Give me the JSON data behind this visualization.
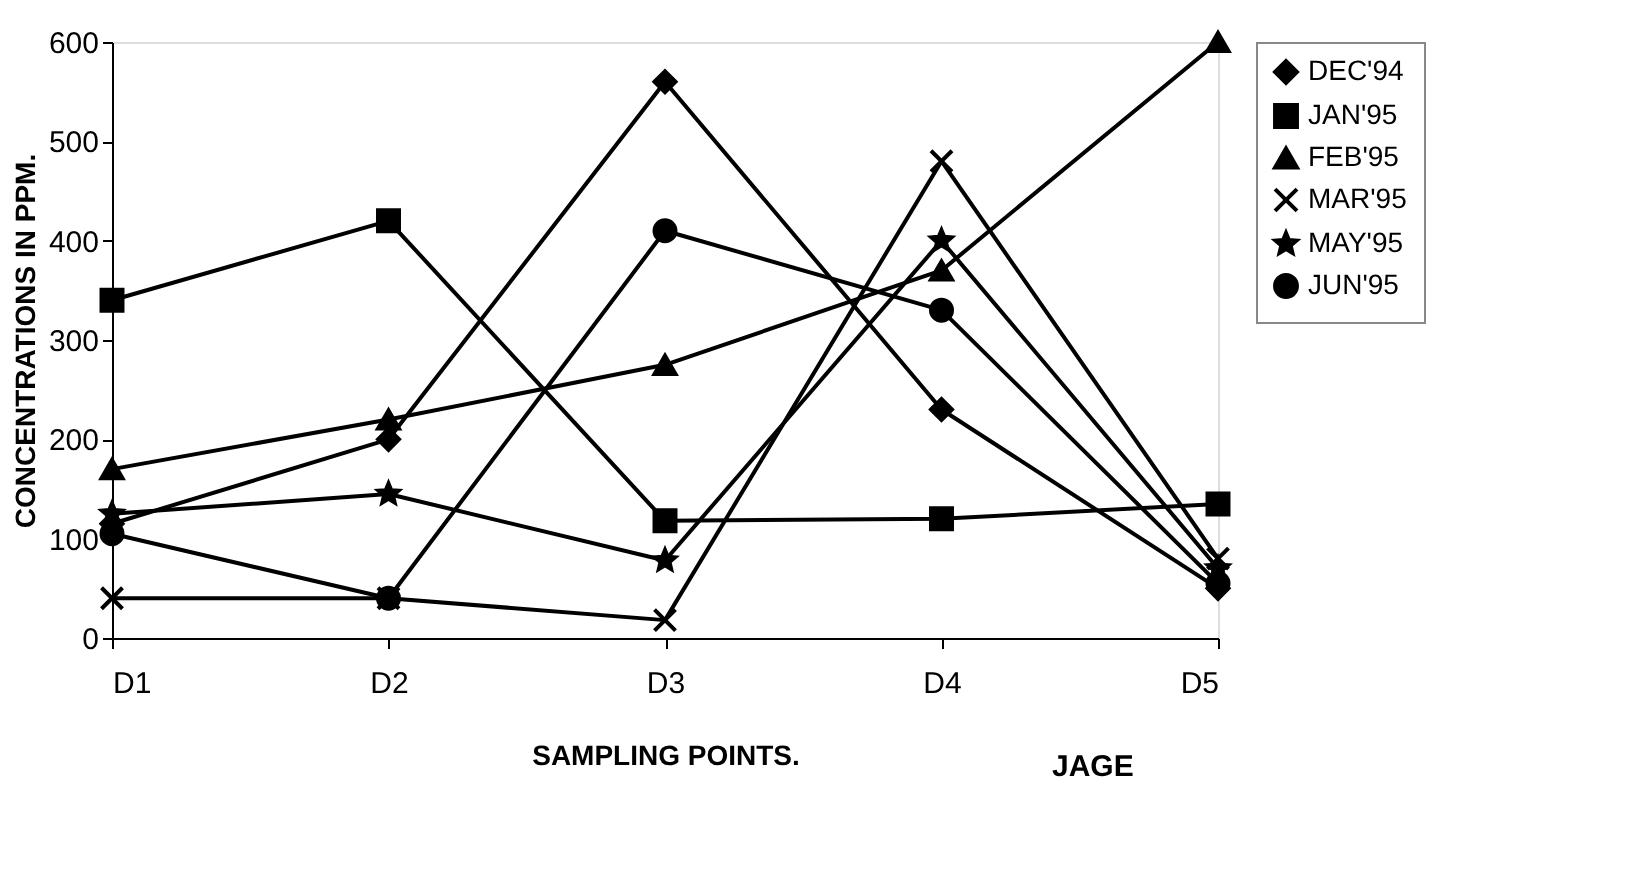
{
  "chart_data": {
    "type": "line",
    "xlabel": "SAMPLING POINTS.",
    "ylabel": "CONCENTRATIONS IN PPM.",
    "categories": [
      "D1",
      "D2",
      "D3",
      "D4",
      "D5"
    ],
    "ylim": [
      0,
      600
    ],
    "yticks": [
      0,
      100,
      200,
      300,
      400,
      500,
      600
    ],
    "grid": false,
    "legend": "right",
    "annotations": [
      "JAGE"
    ],
    "series": [
      {
        "name": "DEC'94",
        "color": "#000000",
        "marker": "diamond",
        "values": [
          115,
          200,
          560,
          230,
          50
        ]
      },
      {
        "name": "JAN'95",
        "color": "#000000",
        "marker": "square",
        "values": [
          340,
          420,
          118,
          120,
          135
        ]
      },
      {
        "name": "FEB'95",
        "color": "#000000",
        "marker": "triangle",
        "values": [
          170,
          220,
          275,
          370,
          600
        ]
      },
      {
        "name": "MAR'95",
        "color": "#000000",
        "marker": "cross",
        "values": [
          40,
          40,
          18,
          480,
          80
        ]
      },
      {
        "name": "MAY'95",
        "color": "#000000",
        "marker": "star",
        "values": [
          125,
          145,
          78,
          400,
          70
        ]
      },
      {
        "name": "JUN'95",
        "color": "#000000",
        "marker": "circle",
        "values": [
          105,
          40,
          410,
          330,
          55
        ]
      }
    ]
  }
}
